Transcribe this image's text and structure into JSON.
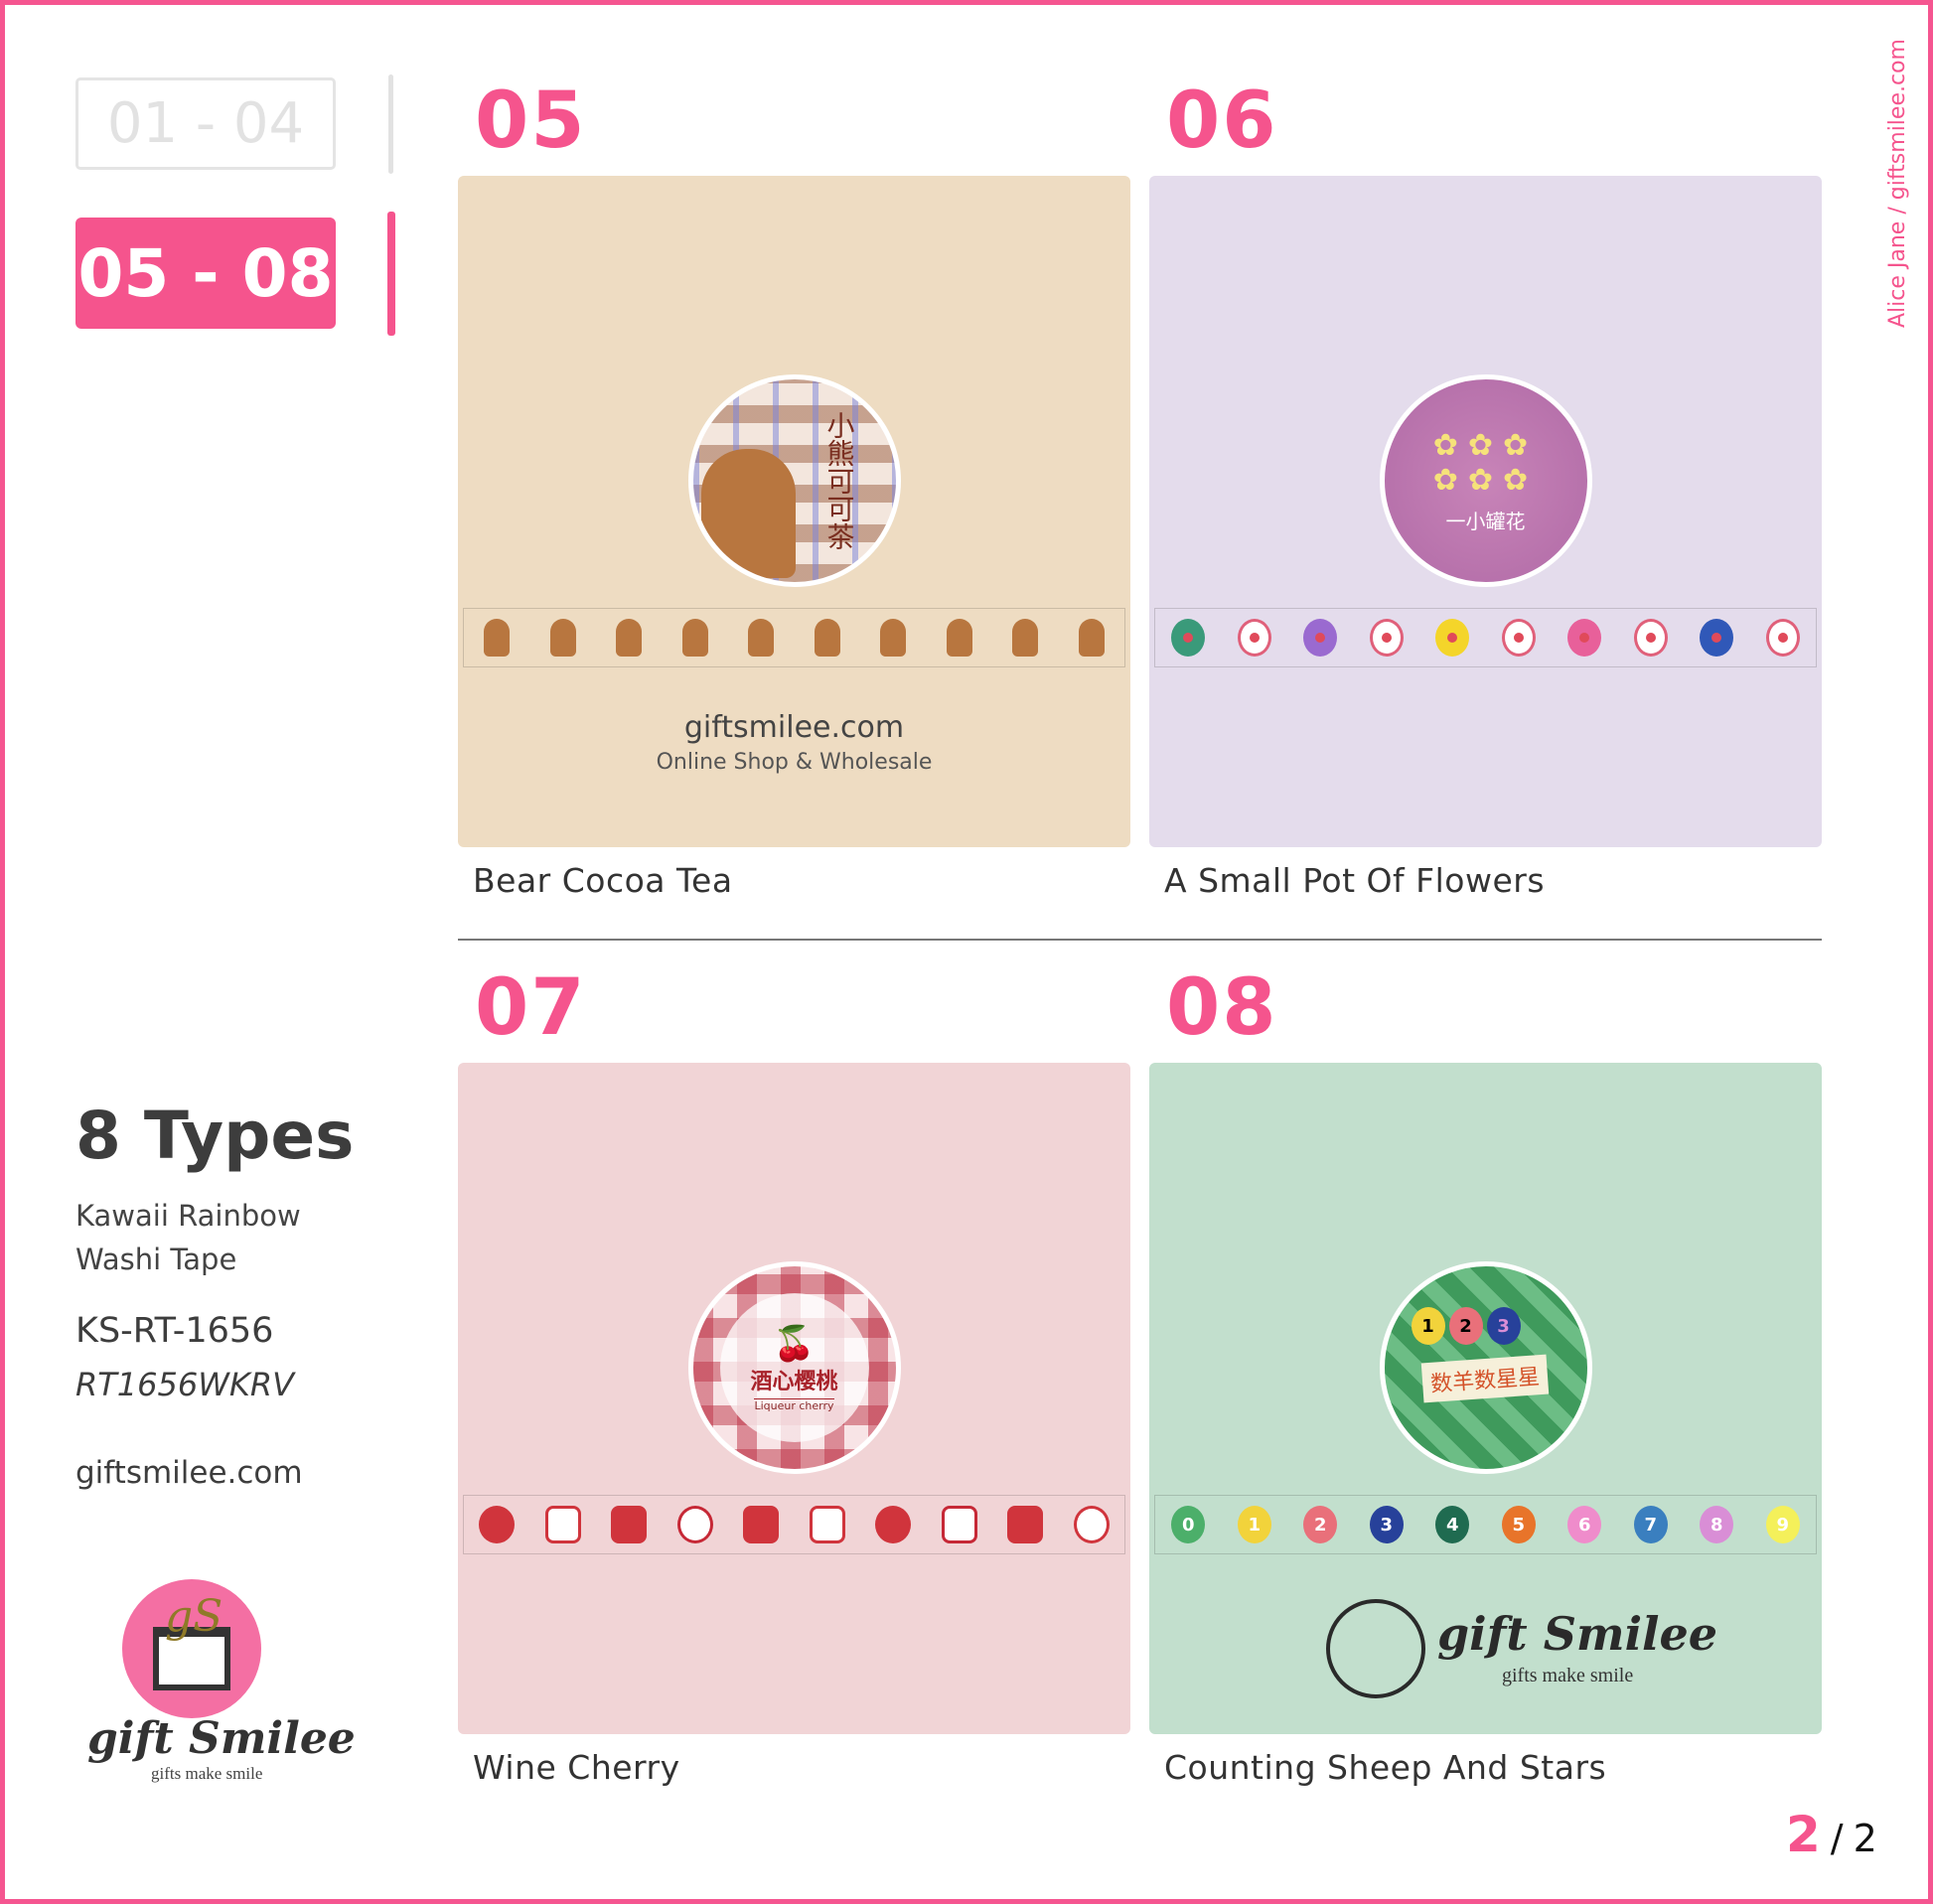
{
  "nav": {
    "range_inactive": "01 - 04",
    "range_active": "05 - 08"
  },
  "side_credit": "Alice Jane / giftsmilee.com",
  "info": {
    "title": "8 Types",
    "subtitle_line1": "Kawaii Rainbow",
    "subtitle_line2": "Washi Tape",
    "code": "KS-RT-1656",
    "sku": "RT1656WKRV",
    "website": "giftsmilee.com"
  },
  "logo": {
    "brand": "gift Smilee",
    "tagline": "gifts make smile",
    "monogram": "gS"
  },
  "accent": "#f5548d",
  "products": [
    {
      "number": "05",
      "name": "Bear Cocoa Tea",
      "bg": "#eedcc2",
      "label_cn": "小熊可可茶",
      "footer_site": "giftsmilee.com",
      "footer_tagline": "Online Shop & Wholesale",
      "tape_icon": "bear-icon",
      "tape_colors": [
        "#b8763f",
        "#b8763f",
        "#b8763f",
        "#b8763f",
        "#b8763f",
        "#b8763f",
        "#b8763f",
        "#b8763f",
        "#b8763f",
        "#b8763f"
      ]
    },
    {
      "number": "06",
      "name": "A Small Pot Of Flowers",
      "bg": "#e4dcec",
      "label_cn": "一小罐花",
      "tape_icon": "flower-icon",
      "tape_colors": [
        "#3a9a7a",
        "#ffffff",
        "#9a6ad0",
        "#ffffff",
        "#f4d52a",
        "#ffffff",
        "#e8609a",
        "#ffffff",
        "#3058b8",
        "#ffffff"
      ]
    },
    {
      "number": "07",
      "name": "Wine Cherry",
      "bg": "#f1d4d6",
      "label_cn": "酒心樱桃",
      "label_en": "Liqueur cherry",
      "tape_icon": "cherry-icon",
      "tape_colors": [
        "#d0343c",
        "#d0343c",
        "#d0343c",
        "#c62836",
        "#d0343c",
        "#d0343c",
        "#d0343c",
        "#c62836",
        "#d0343c",
        "#d0343c"
      ]
    },
    {
      "number": "08",
      "name": "Counting Sheep And Stars",
      "bg": "#c2dfcd",
      "label_cn": "数羊数星星",
      "tape_icon": "number-badge-icon",
      "tape_digits": [
        "0",
        "1",
        "2",
        "3",
        "4",
        "5",
        "6",
        "7",
        "8",
        "9"
      ],
      "tape_colors": [
        "#4caf6a",
        "#f2d33b",
        "#e9707a",
        "#27419a",
        "#1f6b50",
        "#e8742a",
        "#ef8ccb",
        "#3a7fbf",
        "#d98ed6",
        "#f4f05a"
      ]
    }
  ],
  "pagination": {
    "current": "2",
    "separator": "/",
    "total": "2"
  }
}
